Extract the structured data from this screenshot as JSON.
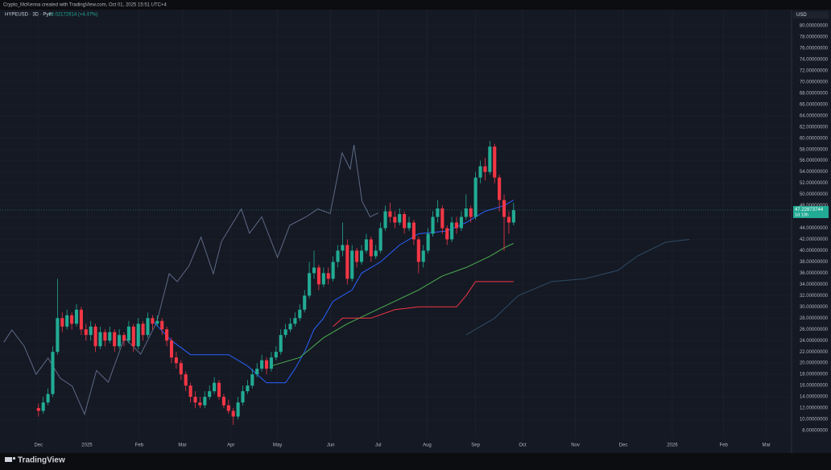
{
  "header": {
    "credit": "Crypto_McKenna created with TradingView.com, Oct 01, 2025 15:51 UTC+4"
  },
  "footer": {
    "logo": "TradingView"
  },
  "chart_data": {
    "type": "candlestick",
    "symbol": "HYPEUSD · 3D · Pyth",
    "change": "+2.02172914 (+4.47%)",
    "currency": "USD",
    "last_price": 47.22873744,
    "countdown": "1d 13h",
    "up_color": "#22ab94",
    "down_color": "#f23645",
    "grid": true,
    "xlim": [
      -8.1,
      158.5
    ],
    "xticks": [
      {
        "value": 0,
        "label": "Dec"
      },
      {
        "value": 10.2,
        "label": "2025"
      },
      {
        "value": 21.2,
        "label": "Feb"
      },
      {
        "value": 30.3,
        "label": "Mar"
      },
      {
        "value": 40.5,
        "label": "Apr"
      },
      {
        "value": 50.3,
        "label": "May"
      },
      {
        "value": 61.5,
        "label": "Jun"
      },
      {
        "value": 71.5,
        "label": "Jul"
      },
      {
        "value": 81.8,
        "label": "Aug"
      },
      {
        "value": 92,
        "label": "Sep"
      },
      {
        "value": 101.9,
        "label": "Oct"
      },
      {
        "value": 113,
        "label": "Nov"
      },
      {
        "value": 123.1,
        "label": "Dec"
      },
      {
        "value": 133.4,
        "label": "2026"
      },
      {
        "value": 144.2,
        "label": "Feb"
      },
      {
        "value": 153.2,
        "label": "Mar"
      }
    ],
    "ylim": [
      6.57,
      82.86
    ],
    "yticks": [
      {
        "value": 8,
        "label": "8.00000000"
      },
      {
        "value": 10,
        "label": "10.00000000"
      },
      {
        "value": 12,
        "label": "12.00000000"
      },
      {
        "value": 14,
        "label": "14.00000000"
      },
      {
        "value": 16,
        "label": "16.00000000"
      },
      {
        "value": 18,
        "label": "18.00000000"
      },
      {
        "value": 20,
        "label": "20.00000000"
      },
      {
        "value": 22,
        "label": "22.00000000"
      },
      {
        "value": 24,
        "label": "24.00000000"
      },
      {
        "value": 26,
        "label": "26.00000000"
      },
      {
        "value": 28,
        "label": "28.00000000"
      },
      {
        "value": 30,
        "label": "30.00000000"
      },
      {
        "value": 32,
        "label": "32.00000000"
      },
      {
        "value": 34,
        "label": "34.00000000"
      },
      {
        "value": 36,
        "label": "36.00000000"
      },
      {
        "value": 38,
        "label": "38.00000000"
      },
      {
        "value": 40,
        "label": "40.00000000"
      },
      {
        "value": 42,
        "label": "42.00000000"
      },
      {
        "value": 44,
        "label": "44.00000000"
      },
      {
        "value": 46,
        "label": "46.00000000"
      },
      {
        "value": 48,
        "label": "48.00000000"
      },
      {
        "value": 50,
        "label": "50.00000000"
      },
      {
        "value": 52,
        "label": "52.00000000"
      },
      {
        "value": 54,
        "label": "54.00000000"
      },
      {
        "value": 56,
        "label": "56.00000000"
      },
      {
        "value": 58,
        "label": "58.00000000"
      },
      {
        "value": 60,
        "label": "60.00000000"
      },
      {
        "value": 62,
        "label": "62.00000000"
      },
      {
        "value": 64,
        "label": "64.00000000"
      },
      {
        "value": 66,
        "label": "66.00000000"
      },
      {
        "value": 68,
        "label": "68.00000000"
      },
      {
        "value": 70,
        "label": "70.00000000"
      },
      {
        "value": 72,
        "label": "72.00000000"
      },
      {
        "value": 74,
        "label": "74.00000000"
      },
      {
        "value": 76,
        "label": "76.00000000"
      },
      {
        "value": 78,
        "label": "78.00000000"
      },
      {
        "value": 80,
        "label": "80.00000000"
      }
    ],
    "ohlc": [
      [
        12,
        12.8,
        10.5,
        11.5
      ],
      [
        11.5,
        14,
        11,
        13
      ],
      [
        13,
        15.5,
        12.5,
        14.5
      ],
      [
        14.5,
        23,
        14,
        22
      ],
      [
        22,
        35,
        21.5,
        28
      ],
      [
        28,
        29,
        25.5,
        26.5
      ],
      [
        26.5,
        29.5,
        26,
        28.5
      ],
      [
        28.5,
        29,
        26,
        27
      ],
      [
        27,
        30.5,
        26.5,
        29.5
      ],
      [
        29.5,
        30,
        25,
        26
      ],
      [
        26,
        27,
        24,
        25
      ],
      [
        25,
        27.5,
        24,
        26.5
      ],
      [
        26.5,
        27,
        22,
        23
      ],
      [
        23,
        26.5,
        22.5,
        25.5
      ],
      [
        25.5,
        26,
        23,
        24
      ],
      [
        24,
        26.5,
        23.5,
        25.5
      ],
      [
        25.5,
        26,
        22,
        23
      ],
      [
        23,
        26,
        22.5,
        25
      ],
      [
        25,
        25.5,
        23,
        24
      ],
      [
        24,
        27.5,
        23.5,
        26.5
      ],
      [
        26.5,
        27,
        22,
        23
      ],
      [
        23,
        28,
        22.5,
        27
      ],
      [
        27,
        27.5,
        24,
        25
      ],
      [
        25,
        29,
        24.5,
        28
      ],
      [
        28,
        28.5,
        26,
        27
      ],
      [
        27,
        28.5,
        26.5,
        27.5
      ],
      [
        27.5,
        28,
        25,
        26
      ],
      [
        26,
        26.5,
        23,
        24
      ],
      [
        24,
        24.5,
        20,
        21
      ],
      [
        21,
        22,
        19,
        20
      ],
      [
        20,
        20.5,
        17,
        18
      ],
      [
        18,
        18.5,
        15,
        16
      ],
      [
        16,
        16.5,
        13,
        14
      ],
      [
        14,
        15,
        12,
        13
      ],
      [
        13,
        14,
        12,
        12.5
      ],
      [
        12.5,
        15,
        12,
        14
      ],
      [
        14,
        16,
        13.5,
        15
      ],
      [
        15,
        17.5,
        14.5,
        16.5
      ],
      [
        16.5,
        17,
        13.5,
        14
      ],
      [
        14,
        14.5,
        12,
        12.5
      ],
      [
        12.5,
        13.5,
        11,
        11.5
      ],
      [
        11.5,
        12,
        9,
        10.5
      ],
      [
        10.5,
        14,
        10,
        13
      ],
      [
        13,
        16,
        12.5,
        15
      ],
      [
        15,
        17,
        14.5,
        16
      ],
      [
        16,
        19,
        15.5,
        18
      ],
      [
        18,
        20,
        17.5,
        19
      ],
      [
        19,
        21.5,
        18.5,
        20.5
      ],
      [
        20.5,
        21,
        18,
        19
      ],
      [
        19,
        22,
        18.5,
        21
      ],
      [
        21,
        23,
        20.5,
        22
      ],
      [
        22,
        26,
        21.5,
        25
      ],
      [
        25,
        27,
        24.5,
        26
      ],
      [
        26,
        28,
        25.5,
        27
      ],
      [
        27,
        29,
        26.5,
        28
      ],
      [
        28,
        30.5,
        27.5,
        29.5
      ],
      [
        29.5,
        33,
        29,
        32
      ],
      [
        32,
        38,
        31.5,
        36
      ],
      [
        36,
        40,
        35,
        37
      ],
      [
        37,
        37.5,
        33,
        34
      ],
      [
        34,
        37,
        33.5,
        36
      ],
      [
        36,
        37,
        34,
        35
      ],
      [
        35,
        39,
        34.5,
        38
      ],
      [
        38,
        41,
        37,
        40
      ],
      [
        40,
        45,
        39,
        41
      ],
      [
        41,
        42,
        34,
        35
      ],
      [
        35,
        41,
        34.5,
        40
      ],
      [
        40,
        40.5,
        37,
        38
      ],
      [
        38,
        41,
        37.5,
        40
      ],
      [
        40,
        43,
        39.5,
        42
      ],
      [
        42,
        42.5,
        38,
        39
      ],
      [
        39,
        41,
        38.5,
        40
      ],
      [
        40,
        45,
        39.5,
        44
      ],
      [
        44,
        48,
        43.5,
        47
      ],
      [
        47,
        48.5,
        45,
        46
      ],
      [
        46,
        47,
        44,
        45
      ],
      [
        45,
        47.5,
        44.5,
        46.5
      ],
      [
        46.5,
        47,
        43,
        44
      ],
      [
        44,
        46,
        43.5,
        45
      ],
      [
        45,
        45.5,
        41,
        42
      ],
      [
        42,
        42.5,
        36,
        38
      ],
      [
        38,
        41,
        37,
        40
      ],
      [
        40,
        44,
        39.5,
        43
      ],
      [
        43,
        47,
        42.5,
        46
      ],
      [
        46,
        49,
        45,
        47.5
      ],
      [
        47.5,
        48,
        43,
        44
      ],
      [
        44,
        44.5,
        41,
        42
      ],
      [
        42,
        46,
        41.5,
        45
      ],
      [
        45,
        46,
        43,
        44
      ],
      [
        44,
        47,
        43.5,
        46
      ],
      [
        46,
        50,
        45.5,
        47.5
      ],
      [
        47.5,
        48,
        45,
        46
      ],
      [
        46,
        54,
        45.5,
        53
      ],
      [
        53,
        56,
        52,
        55
      ],
      [
        55,
        56.5,
        52.5,
        54
      ],
      [
        54,
        59.5,
        53.5,
        58.5
      ],
      [
        58.5,
        59,
        52,
        53
      ],
      [
        53,
        53.5,
        47,
        49
      ],
      [
        49,
        50,
        40,
        46
      ],
      [
        46,
        47,
        43,
        45
      ],
      [
        45,
        48.5,
        44.5,
        47.2
      ]
    ],
    "series": [
      {
        "color": "#5d6a86",
        "x": [
          -7.3,
          -5.6,
          -3,
          -0.5,
          2,
          4.6,
          7.1,
          9.7,
          12.2,
          14.7,
          18.1,
          21.5,
          24.9,
          27.5,
          29.2,
          31.7,
          34.2,
          36.8,
          38.5,
          42.7,
          44.4,
          47,
          50.3,
          52.9,
          56.3,
          58.8,
          61.4,
          63.9,
          65.6,
          66.4,
          68.1,
          69.8,
          71.5
        ],
        "values": [
          23.7,
          25.9,
          23,
          18,
          20.9,
          17.3,
          15.9,
          10.9,
          18.7,
          16.6,
          24.5,
          21.6,
          27.3,
          35.9,
          34.5,
          37.3,
          42.4,
          35.9,
          41.6,
          47.4,
          43.1,
          46,
          38.8,
          44.5,
          46,
          47.4,
          46.6,
          57.4,
          54.5,
          58.8,
          48.8,
          46,
          46.7
        ]
      },
      {
        "color": "#2f4a63",
        "x": [
          90,
          96,
          101,
          108,
          115,
          122,
          126,
          132,
          137
        ],
        "values": [
          25,
          28,
          32,
          34.5,
          35,
          36.5,
          39,
          41.5,
          42
        ]
      },
      {
        "color": "#2962ff",
        "x": [
          24,
          28,
          32,
          40,
          44,
          48,
          52,
          54,
          56,
          58,
          60,
          62,
          66,
          68,
          72,
          76,
          80,
          86,
          90,
          94,
          98,
          100
        ],
        "values": [
          27.5,
          24,
          21.5,
          21.5,
          19.5,
          16.5,
          16.5,
          19,
          22,
          26,
          28,
          31,
          33,
          36,
          38,
          41,
          43,
          43.5,
          45,
          47,
          48,
          49
        ]
      },
      {
        "color": "#4caf50",
        "x": [
          49,
          55,
          60,
          65,
          70,
          75,
          80,
          85,
          90,
          95,
          98,
          100
        ],
        "values": [
          19.5,
          21,
          24.5,
          27,
          29,
          31,
          33,
          35.5,
          37,
          39,
          40.5,
          41.3
        ]
      },
      {
        "color": "#f23645",
        "x": [
          62,
          64,
          70,
          75,
          80,
          88,
          90,
          92,
          100
        ],
        "values": [
          26.5,
          28,
          28,
          29.5,
          30,
          30,
          32,
          34.5,
          34.5
        ]
      }
    ]
  }
}
